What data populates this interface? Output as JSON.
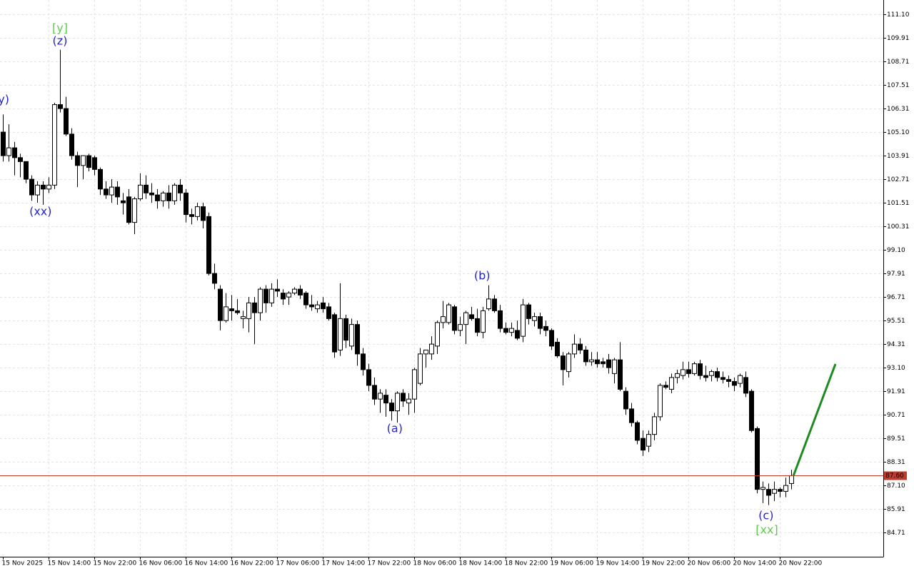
{
  "chart_data": {
    "type": "candlestick",
    "categories": [
      "15 Nov 2025",
      null,
      null,
      null,
      null,
      null,
      null,
      null,
      "15 Nov 14:00",
      null,
      null,
      null,
      null,
      null,
      null,
      null,
      "15 Nov 22:00",
      null,
      null,
      null,
      null,
      null,
      null,
      null,
      "16 Nov 06:00",
      null,
      null,
      null,
      null,
      null,
      null,
      null,
      "16 Nov 14:00",
      null,
      null,
      null,
      null,
      null,
      null,
      null,
      "16 Nov 22:00",
      null,
      null,
      null,
      null,
      null,
      null,
      null,
      "17 Nov 06:00",
      null,
      null,
      null,
      null,
      null,
      null,
      null,
      "17 Nov 14:00",
      null,
      null,
      null,
      null,
      null,
      null,
      null,
      "17 Nov 22:00",
      null,
      null,
      null,
      null,
      null,
      null,
      null,
      "18 Nov 06:00",
      null,
      null,
      null,
      null,
      null,
      null,
      null,
      "18 Nov 14:00",
      null,
      null,
      null,
      null,
      null,
      null,
      null,
      "18 Nov 22:00",
      null,
      null,
      null,
      null,
      null,
      null,
      null,
      "19 Nov 06:00",
      null,
      null,
      null,
      null,
      null,
      null,
      null,
      "19 Nov 14:00",
      null,
      null,
      null,
      null,
      null,
      null,
      null,
      "19 Nov 22:00",
      null,
      null,
      null,
      null,
      null,
      null,
      null,
      "20 Nov 06:00",
      null,
      null,
      null,
      null,
      null,
      null,
      null,
      "20 Nov 14:00",
      null,
      null,
      null,
      null,
      null,
      null,
      null,
      "20 Nov 22:00",
      null,
      null
    ],
    "ohlc": [
      [
        105.1,
        106.0,
        103.6,
        103.9
      ],
      [
        103.9,
        105.5,
        103.6,
        104.3
      ],
      [
        104.3,
        104.6,
        102.9,
        103.8
      ],
      [
        103.8,
        104.0,
        102.8,
        103.6
      ],
      [
        103.6,
        103.6,
        102.5,
        102.7
      ],
      [
        102.7,
        102.9,
        101.6,
        101.9
      ],
      [
        101.9,
        102.6,
        101.5,
        102.4
      ],
      [
        102.4,
        102.6,
        101.4,
        102.2
      ],
      [
        102.2,
        102.8,
        102.0,
        102.4
      ],
      [
        102.4,
        106.6,
        102.2,
        106.5
      ],
      [
        106.5,
        109.3,
        106.1,
        106.3
      ],
      [
        106.3,
        106.9,
        104.9,
        105.0
      ],
      [
        105.0,
        105.3,
        103.7,
        103.9
      ],
      [
        103.9,
        104.1,
        102.3,
        103.4
      ],
      [
        103.4,
        103.9,
        102.7,
        103.9
      ],
      [
        103.9,
        104.0,
        103.1,
        103.3
      ],
      [
        103.8,
        103.9,
        102.9,
        103.2
      ],
      [
        103.2,
        103.3,
        101.9,
        102.2
      ],
      [
        102.2,
        102.6,
        101.7,
        101.9
      ],
      [
        101.9,
        102.7,
        101.5,
        102.3
      ],
      [
        102.3,
        102.6,
        101.4,
        101.8
      ],
      [
        101.6,
        102.0,
        100.9,
        101.5
      ],
      [
        101.8,
        102.2,
        100.4,
        100.5
      ],
      [
        100.5,
        101.8,
        99.9,
        101.7
      ],
      [
        101.7,
        103.0,
        101.6,
        102.4
      ],
      [
        102.4,
        102.9,
        101.7,
        102.0
      ],
      [
        102.0,
        102.5,
        101.5,
        101.9
      ],
      [
        101.9,
        102.2,
        101.2,
        101.6
      ],
      [
        101.6,
        102.1,
        101.3,
        102.0
      ],
      [
        102.0,
        102.4,
        101.2,
        101.6
      ],
      [
        101.6,
        102.5,
        101.4,
        102.4
      ],
      [
        102.4,
        102.7,
        101.6,
        102.0
      ],
      [
        102.0,
        102.2,
        100.5,
        100.9
      ],
      [
        100.9,
        101.2,
        100.4,
        100.8
      ],
      [
        100.8,
        101.5,
        100.6,
        101.3
      ],
      [
        101.3,
        101.5,
        100.2,
        100.6
      ],
      [
        100.8,
        101.0,
        97.8,
        97.9
      ],
      [
        97.9,
        98.4,
        97.1,
        97.4
      ],
      [
        97.1,
        97.3,
        95.0,
        95.5
      ],
      [
        95.5,
        96.9,
        95.4,
        96.2
      ],
      [
        96.1,
        96.8,
        95.5,
        96.0
      ],
      [
        96.0,
        96.6,
        95.8,
        95.9
      ],
      [
        95.6,
        96.0,
        95.1,
        95.7
      ],
      [
        95.6,
        96.7,
        94.9,
        96.4
      ],
      [
        96.4,
        96.7,
        94.3,
        95.9
      ],
      [
        95.9,
        97.2,
        95.5,
        97.1
      ],
      [
        97.1,
        97.3,
        95.9,
        96.4
      ],
      [
        96.4,
        97.4,
        96.2,
        97.1
      ],
      [
        97.1,
        97.6,
        96.7,
        97.0
      ],
      [
        96.9,
        97.1,
        96.3,
        96.6
      ],
      [
        96.7,
        97.0,
        96.3,
        96.9
      ],
      [
        96.9,
        97.2,
        96.8,
        97.1
      ],
      [
        97.1,
        97.3,
        96.6,
        96.8
      ],
      [
        96.9,
        97.0,
        96.1,
        96.3
      ],
      [
        96.3,
        96.8,
        96.0,
        96.2
      ],
      [
        96.1,
        96.5,
        95.9,
        96.3
      ],
      [
        96.4,
        96.7,
        95.9,
        96.1
      ],
      [
        96.2,
        96.4,
        95.5,
        95.6
      ],
      [
        95.8,
        95.9,
        93.6,
        93.9
      ],
      [
        94.0,
        97.4,
        93.7,
        95.6
      ],
      [
        95.6,
        95.8,
        94.1,
        94.5
      ],
      [
        94.2,
        95.6,
        94.0,
        95.3
      ],
      [
        95.3,
        95.5,
        93.2,
        93.8
      ],
      [
        93.8,
        94.1,
        92.7,
        93.0
      ],
      [
        93.0,
        93.3,
        91.9,
        92.2
      ],
      [
        92.2,
        92.6,
        91.2,
        91.5
      ],
      [
        91.5,
        92.0,
        90.8,
        91.8
      ],
      [
        91.7,
        92.0,
        90.6,
        91.3
      ],
      [
        91.3,
        91.5,
        90.4,
        90.9
      ],
      [
        90.9,
        91.9,
        90.3,
        91.8
      ],
      [
        91.8,
        92.0,
        91.1,
        91.4
      ],
      [
        91.3,
        91.8,
        90.7,
        91.5
      ],
      [
        91.5,
        93.1,
        90.8,
        93.0
      ],
      [
        92.3,
        94.1,
        92.2,
        93.8
      ],
      [
        93.8,
        94.0,
        93.1,
        94.0
      ],
      [
        93.8,
        94.7,
        93.5,
        94.3
      ],
      [
        94.2,
        95.5,
        93.8,
        95.4
      ],
      [
        95.4,
        96.5,
        95.1,
        95.7
      ],
      [
        95.4,
        96.4,
        95.3,
        96.3
      ],
      [
        96.2,
        96.3,
        94.8,
        95.0
      ],
      [
        95.0,
        95.7,
        94.7,
        95.3
      ],
      [
        95.3,
        96.0,
        94.3,
        95.9
      ],
      [
        95.8,
        96.2,
        95.5,
        95.6
      ],
      [
        95.6,
        96.1,
        94.7,
        94.9
      ],
      [
        94.9,
        96.2,
        94.6,
        96.0
      ],
      [
        96.1,
        97.3,
        96.0,
        96.6
      ],
      [
        96.6,
        96.8,
        95.9,
        96.0
      ],
      [
        96.0,
        96.3,
        94.9,
        95.1
      ],
      [
        95.1,
        95.4,
        94.8,
        94.9
      ],
      [
        94.9,
        95.4,
        94.7,
        95.1
      ],
      [
        95.0,
        95.5,
        94.5,
        94.6
      ],
      [
        94.7,
        96.6,
        94.4,
        96.3
      ],
      [
        96.3,
        96.4,
        95.3,
        95.6
      ],
      [
        95.5,
        95.9,
        95.2,
        95.7
      ],
      [
        95.7,
        95.9,
        94.8,
        95.1
      ],
      [
        95.2,
        95.5,
        94.7,
        95.0
      ],
      [
        95.0,
        95.1,
        94.0,
        94.2
      ],
      [
        94.4,
        94.6,
        93.6,
        93.7
      ],
      [
        93.7,
        93.9,
        92.2,
        93.0
      ],
      [
        92.9,
        93.9,
        92.6,
        93.8
      ],
      [
        93.8,
        94.8,
        93.6,
        94.3
      ],
      [
        94.3,
        94.6,
        93.8,
        94.0
      ],
      [
        94.0,
        94.2,
        93.2,
        93.4
      ],
      [
        93.4,
        93.9,
        93.2,
        93.5
      ],
      [
        93.5,
        93.9,
        93.1,
        93.3
      ],
      [
        93.4,
        93.6,
        93.1,
        93.3
      ],
      [
        93.5,
        93.8,
        92.8,
        93.1
      ],
      [
        92.8,
        93.6,
        92.3,
        93.5
      ],
      [
        93.5,
        94.4,
        91.9,
        92.0
      ],
      [
        91.9,
        92.1,
        90.7,
        91.0
      ],
      [
        91.0,
        91.3,
        90.1,
        90.3
      ],
      [
        90.3,
        90.4,
        89.2,
        89.4
      ],
      [
        89.5,
        89.9,
        88.6,
        88.9
      ],
      [
        89.1,
        89.9,
        88.8,
        89.7
      ],
      [
        89.7,
        90.8,
        89.4,
        90.6
      ],
      [
        90.6,
        92.3,
        90.4,
        92.2
      ],
      [
        92.2,
        92.4,
        92.0,
        92.1
      ],
      [
        92.0,
        92.8,
        91.8,
        92.6
      ],
      [
        92.6,
        93.0,
        92.3,
        92.8
      ],
      [
        92.7,
        93.4,
        92.5,
        93.0
      ],
      [
        93.0,
        93.4,
        92.6,
        92.8
      ],
      [
        92.8,
        93.4,
        92.7,
        93.3
      ],
      [
        93.3,
        93.5,
        92.5,
        92.7
      ],
      [
        92.7,
        93.2,
        92.4,
        92.6
      ],
      [
        92.7,
        93.0,
        92.4,
        92.9
      ],
      [
        92.9,
        93.1,
        92.4,
        92.6
      ],
      [
        92.6,
        92.9,
        92.3,
        92.5
      ],
      [
        92.5,
        92.7,
        92.1,
        92.4
      ],
      [
        92.4,
        92.6,
        91.9,
        92.2
      ],
      [
        92.3,
        92.8,
        92.1,
        92.7
      ],
      [
        92.6,
        92.9,
        91.6,
        91.8
      ],
      [
        91.9,
        92.0,
        89.8,
        89.9
      ],
      [
        90.0,
        90.1,
        86.7,
        86.9
      ],
      [
        86.9,
        87.3,
        86.2,
        87.0
      ],
      [
        86.9,
        87.2,
        86.1,
        86.6
      ],
      [
        86.7,
        87.3,
        86.3,
        86.9
      ],
      [
        86.9,
        87.0,
        86.5,
        86.8
      ],
      [
        86.8,
        87.5,
        86.5,
        87.1
      ],
      [
        87.2,
        87.9,
        86.9,
        87.6
      ]
    ],
    "up_color": "#ffffff",
    "down_color": "#000000",
    "ylim": [
      83.47,
      111.83
    ],
    "yticks": [
      {
        "value": 111.1,
        "label": "111.10"
      },
      109.91,
      108.71,
      107.51,
      106.31,
      {
        "value": 105.1,
        "label": "105.10"
      },
      103.91,
      102.71,
      101.51,
      100.31,
      {
        "value": 99.1,
        "label": "99.10"
      },
      97.91,
      96.71,
      95.51,
      94.31,
      {
        "value": 93.1,
        "label": "93.10"
      },
      91.91,
      90.71,
      89.51,
      88.31,
      {
        "value": 87.1,
        "label": "87.10"
      },
      85.91,
      84.71
    ],
    "grid": true,
    "price_line": {
      "value": 87.6,
      "label": "87.60",
      "color": "#c0392b"
    },
    "annotations": [
      {
        "text": "(y)",
        "x": -0.25,
        "y": 106.74,
        "color": "#2525d0"
      },
      {
        "text": "[y]",
        "x": 10,
        "y": 110.37,
        "color": "#5ccc4a"
      },
      {
        "text": "(z)",
        "x": 10,
        "y": 109.72,
        "color": "#2525d0"
      },
      {
        "text": "(xx)",
        "x": 6.6,
        "y": 101.03,
        "color": "#2525d0"
      },
      {
        "text": "(a)",
        "x": 68.6,
        "y": 89.98,
        "color": "#2525d0"
      },
      {
        "text": "(b)",
        "x": 83.9,
        "y": 97.76,
        "color": "#2525d0"
      },
      {
        "text": "(c)",
        "x": 133.6,
        "y": 85.55,
        "color": "#2525d0"
      },
      {
        "text": "[xx]",
        "x": 133.75,
        "y": 84.82,
        "color": "#5ccc4a"
      }
    ],
    "forecast": {
      "x": [
        138.4,
        145.75
      ],
      "values": [
        87.6,
        93.29
      ],
      "color": "#1f8a1f"
    }
  }
}
